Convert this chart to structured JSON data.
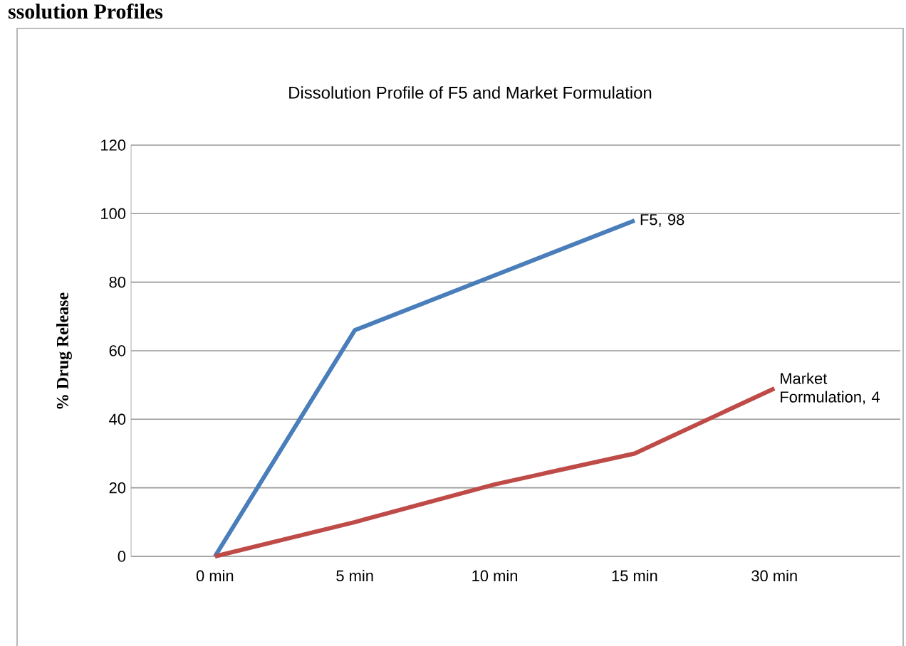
{
  "chart_data": {
    "type": "line",
    "title": "Dissolution Profile of F5 and Market Formulation",
    "ylabel": "% Drug Release",
    "annotations": [
      "ssolution Profiles"
    ],
    "categories": [
      "0 min",
      "5 min",
      "10 min",
      "15 min",
      "30 min"
    ],
    "series": [
      {
        "color": "#4a7ebb",
        "values": [
          0,
          66,
          82,
          98,
          null
        ],
        "value_labels": [
          null,
          null,
          null,
          "F5, 98",
          null
        ]
      },
      {
        "color": "#be4b48",
        "values": [
          0,
          10,
          21,
          30,
          49
        ],
        "value_labels": [
          null,
          null,
          null,
          null,
          "Market Formulation, 4"
        ]
      }
    ],
    "ylim": [
      0,
      120
    ],
    "yticks": [
      0,
      20,
      40,
      60,
      80,
      100,
      120
    ],
    "grid": "y",
    "marker": "none",
    "line_style": "solid"
  }
}
